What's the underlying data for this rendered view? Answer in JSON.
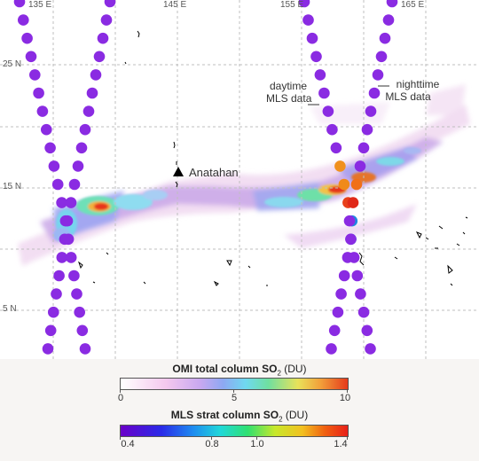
{
  "longitude_labels": [
    "135 E",
    "145 E",
    "155 E",
    "165 E"
  ],
  "latitude_labels": [
    "25 N",
    "15 N",
    "5 N"
  ],
  "annotations": {
    "volcano": "Anatahan",
    "daytime": [
      "daytime",
      "MLS data"
    ],
    "nighttime": [
      "nighttime",
      "MLS data"
    ]
  },
  "legend": {
    "omi": {
      "title_main": "OMI total column SO",
      "title_sub": "2",
      "title_unit": " (DU)",
      "ticks": [
        "0",
        "5",
        "10"
      ]
    },
    "mls": {
      "title_main": "MLS strat column SO",
      "title_sub": "2",
      "title_unit": " (DU)",
      "ticks": [
        "0.4",
        "0.8",
        "1.0",
        "1.4"
      ]
    }
  },
  "colors": {
    "mls_point": "#8a2be2",
    "grid": "#bfbfbf",
    "coastline": "#000000"
  }
}
